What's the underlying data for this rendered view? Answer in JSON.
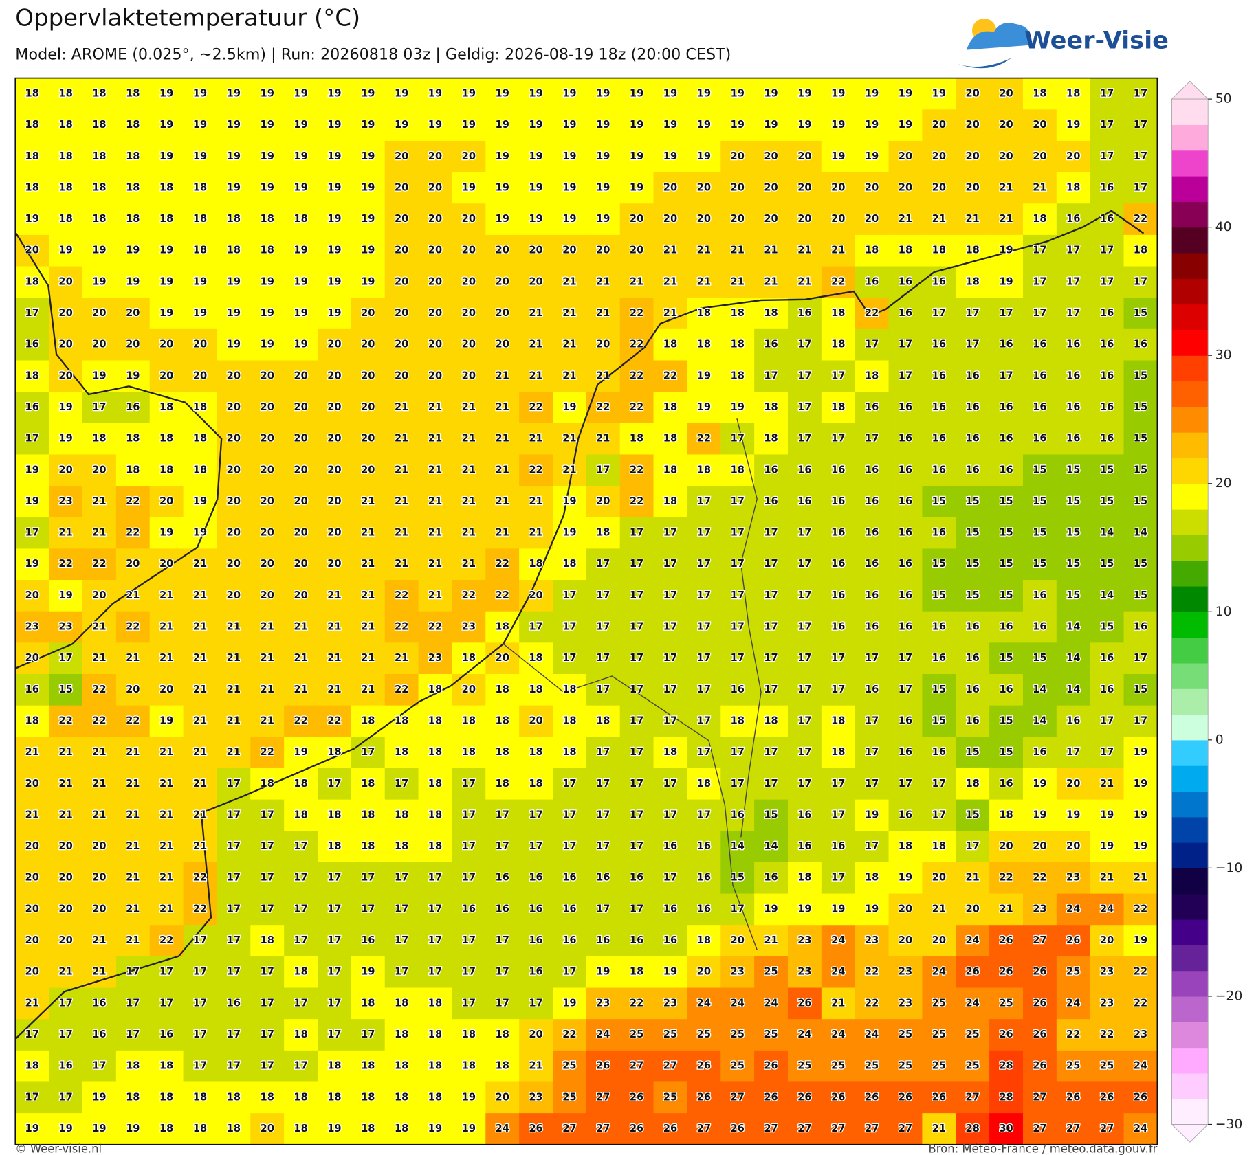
{
  "header": {
    "title": "Oppervlaktetemperatuur (°C)",
    "subtitle": "Model: AROME (0.025°, ~2.5km)  |  Run: 20260818 03z  |  Geldig: 2026-08-19 18z (20:00 CEST)"
  },
  "logo": {
    "text": "Weer-Visie"
  },
  "grid": {
    "rows": [
      [
        18,
        18,
        18,
        18,
        19,
        19,
        19,
        19,
        19,
        19,
        19,
        19,
        19,
        19,
        19,
        19,
        19,
        19,
        19,
        19,
        19,
        19,
        19,
        19,
        19,
        19,
        19,
        19,
        20,
        20,
        18,
        18,
        17,
        17
      ],
      [
        18,
        18,
        18,
        18,
        19,
        19,
        19,
        19,
        19,
        19,
        19,
        19,
        19,
        19,
        19,
        19,
        19,
        19,
        19,
        19,
        19,
        19,
        19,
        19,
        19,
        19,
        19,
        20,
        20,
        20,
        20,
        19,
        17,
        17
      ],
      [
        18,
        18,
        18,
        18,
        19,
        19,
        19,
        19,
        19,
        19,
        19,
        20,
        20,
        20,
        19,
        19,
        19,
        19,
        19,
        19,
        19,
        20,
        20,
        20,
        19,
        19,
        20,
        20,
        20,
        20,
        20,
        20,
        17,
        17
      ],
      [
        18,
        18,
        18,
        18,
        18,
        18,
        19,
        19,
        19,
        19,
        19,
        20,
        20,
        19,
        19,
        19,
        19,
        19,
        19,
        20,
        20,
        20,
        20,
        20,
        20,
        20,
        20,
        20,
        20,
        21,
        21,
        18,
        16,
        17
      ],
      [
        19,
        18,
        18,
        18,
        18,
        18,
        18,
        18,
        18,
        19,
        19,
        20,
        20,
        20,
        19,
        19,
        19,
        19,
        20,
        20,
        20,
        20,
        20,
        20,
        20,
        20,
        21,
        21,
        21,
        21,
        18,
        16,
        16,
        22
      ],
      [
        20,
        19,
        19,
        19,
        19,
        18,
        18,
        18,
        19,
        19,
        19,
        20,
        20,
        20,
        20,
        20,
        20,
        20,
        20,
        21,
        21,
        21,
        21,
        21,
        21,
        18,
        18,
        18,
        18,
        19,
        17,
        17,
        17,
        18
      ],
      [
        18,
        20,
        19,
        19,
        19,
        19,
        19,
        19,
        19,
        19,
        19,
        20,
        20,
        20,
        20,
        20,
        21,
        21,
        21,
        21,
        21,
        21,
        21,
        21,
        22,
        16,
        16,
        16,
        18,
        19,
        17,
        17,
        17,
        17
      ],
      [
        17,
        20,
        20,
        20,
        19,
        19,
        19,
        19,
        19,
        19,
        20,
        20,
        20,
        20,
        20,
        21,
        21,
        21,
        22,
        21,
        18,
        18,
        18,
        16,
        18,
        22,
        16,
        17,
        17,
        17,
        17,
        17,
        16,
        15
      ],
      [
        16,
        20,
        20,
        20,
        20,
        20,
        19,
        19,
        19,
        20,
        20,
        20,
        20,
        20,
        20,
        21,
        21,
        20,
        22,
        18,
        18,
        18,
        16,
        17,
        18,
        17,
        17,
        16,
        17,
        16,
        16,
        16,
        16,
        16
      ],
      [
        18,
        20,
        19,
        19,
        20,
        20,
        20,
        20,
        20,
        20,
        20,
        20,
        20,
        20,
        21,
        21,
        21,
        21,
        22,
        22,
        19,
        18,
        17,
        17,
        17,
        18,
        17,
        16,
        16,
        17,
        16,
        16,
        16,
        15
      ],
      [
        16,
        19,
        17,
        16,
        18,
        18,
        20,
        20,
        20,
        20,
        20,
        21,
        21,
        21,
        21,
        22,
        19,
        22,
        22,
        18,
        19,
        19,
        18,
        17,
        18,
        16,
        16,
        16,
        16,
        16,
        16,
        16,
        16,
        15
      ],
      [
        17,
        19,
        18,
        18,
        18,
        18,
        20,
        20,
        20,
        20,
        20,
        21,
        21,
        21,
        21,
        21,
        21,
        21,
        18,
        18,
        22,
        17,
        18,
        17,
        17,
        17,
        16,
        16,
        16,
        16,
        16,
        16,
        16,
        15
      ],
      [
        19,
        20,
        20,
        18,
        18,
        18,
        20,
        20,
        20,
        20,
        20,
        21,
        21,
        21,
        21,
        22,
        21,
        17,
        22,
        18,
        18,
        18,
        16,
        16,
        16,
        16,
        16,
        16,
        16,
        16,
        15,
        15,
        15,
        15
      ],
      [
        19,
        23,
        21,
        22,
        20,
        19,
        20,
        20,
        20,
        20,
        21,
        21,
        21,
        21,
        21,
        21,
        19,
        20,
        22,
        18,
        17,
        17,
        16,
        16,
        16,
        16,
        16,
        15,
        15,
        15,
        15,
        15,
        15,
        15
      ],
      [
        17,
        21,
        21,
        22,
        19,
        19,
        20,
        20,
        20,
        20,
        21,
        21,
        21,
        21,
        21,
        21,
        19,
        18,
        17,
        17,
        17,
        17,
        17,
        17,
        16,
        16,
        16,
        16,
        15,
        15,
        15,
        15,
        14,
        14
      ],
      [
        19,
        22,
        22,
        20,
        20,
        21,
        20,
        20,
        20,
        20,
        21,
        21,
        21,
        21,
        22,
        18,
        18,
        17,
        17,
        17,
        17,
        17,
        17,
        17,
        16,
        16,
        16,
        15,
        15,
        15,
        15,
        15,
        15,
        15
      ],
      [
        20,
        19,
        20,
        21,
        21,
        21,
        20,
        20,
        20,
        21,
        21,
        22,
        21,
        22,
        22,
        20,
        17,
        17,
        17,
        17,
        17,
        17,
        17,
        17,
        16,
        16,
        16,
        15,
        15,
        15,
        16,
        15,
        14,
        15
      ],
      [
        23,
        23,
        21,
        22,
        21,
        21,
        21,
        21,
        21,
        21,
        21,
        22,
        22,
        23,
        18,
        17,
        17,
        17,
        17,
        17,
        17,
        17,
        17,
        17,
        16,
        16,
        16,
        16,
        16,
        16,
        16,
        14,
        15,
        16
      ],
      [
        20,
        17,
        21,
        21,
        21,
        21,
        21,
        21,
        21,
        21,
        21,
        21,
        23,
        18,
        20,
        18,
        17,
        17,
        17,
        17,
        17,
        17,
        17,
        17,
        17,
        17,
        17,
        16,
        16,
        15,
        15,
        14,
        16,
        17
      ],
      [
        16,
        15,
        22,
        20,
        20,
        21,
        21,
        21,
        21,
        21,
        21,
        22,
        18,
        20,
        18,
        18,
        18,
        17,
        17,
        17,
        17,
        16,
        17,
        17,
        17,
        16,
        17,
        15,
        16,
        16,
        14,
        14,
        16,
        15
      ],
      [
        18,
        22,
        22,
        22,
        19,
        21,
        21,
        21,
        22,
        22,
        18,
        18,
        18,
        18,
        18,
        20,
        18,
        18,
        17,
        17,
        17,
        18,
        18,
        17,
        18,
        17,
        16,
        15,
        16,
        15,
        14,
        16,
        17,
        17
      ],
      [
        21,
        21,
        21,
        21,
        21,
        21,
        21,
        22,
        19,
        18,
        17,
        18,
        18,
        18,
        18,
        18,
        18,
        17,
        17,
        18,
        17,
        17,
        17,
        17,
        18,
        17,
        16,
        16,
        15,
        15,
        16,
        17,
        17,
        19
      ],
      [
        20,
        21,
        21,
        21,
        21,
        21,
        17,
        18,
        18,
        17,
        18,
        17,
        18,
        17,
        18,
        18,
        17,
        17,
        17,
        17,
        18,
        17,
        17,
        17,
        17,
        17,
        17,
        17,
        18,
        16,
        19,
        20,
        21,
        19
      ],
      [
        21,
        21,
        21,
        21,
        21,
        21,
        17,
        17,
        18,
        18,
        18,
        18,
        18,
        17,
        17,
        17,
        17,
        17,
        17,
        17,
        17,
        16,
        15,
        16,
        17,
        19,
        16,
        17,
        15,
        18,
        19,
        19,
        19,
        19
      ],
      [
        20,
        20,
        20,
        21,
        21,
        21,
        17,
        17,
        17,
        18,
        18,
        18,
        18,
        17,
        17,
        17,
        17,
        17,
        17,
        16,
        16,
        14,
        14,
        16,
        16,
        17,
        18,
        18,
        17,
        20,
        20,
        20,
        19,
        19
      ],
      [
        20,
        20,
        20,
        21,
        21,
        22,
        17,
        17,
        17,
        17,
        17,
        17,
        17,
        17,
        16,
        16,
        16,
        16,
        16,
        17,
        16,
        15,
        16,
        18,
        17,
        18,
        19,
        20,
        21,
        22,
        22,
        23,
        21,
        21
      ],
      [
        20,
        20,
        20,
        21,
        21,
        22,
        17,
        17,
        17,
        17,
        17,
        17,
        17,
        16,
        16,
        16,
        16,
        17,
        17,
        16,
        16,
        17,
        19,
        19,
        19,
        19,
        20,
        21,
        20,
        21,
        23,
        24,
        24,
        22
      ],
      [
        20,
        20,
        21,
        21,
        22,
        17,
        17,
        18,
        17,
        17,
        16,
        17,
        17,
        17,
        17,
        16,
        16,
        16,
        16,
        16,
        18,
        20,
        21,
        23,
        24,
        23,
        20,
        20,
        24,
        26,
        27,
        26,
        20,
        19
      ],
      [
        20,
        21,
        21,
        17,
        17,
        17,
        17,
        17,
        18,
        17,
        19,
        17,
        17,
        17,
        17,
        16,
        17,
        19,
        18,
        19,
        20,
        23,
        25,
        23,
        24,
        22,
        23,
        24,
        26,
        26,
        26,
        25,
        23,
        22
      ],
      [
        21,
        17,
        16,
        17,
        17,
        17,
        16,
        17,
        17,
        17,
        18,
        18,
        18,
        17,
        17,
        17,
        19,
        23,
        22,
        23,
        24,
        24,
        24,
        26,
        21,
        22,
        23,
        25,
        24,
        25,
        26,
        24,
        23,
        22
      ],
      [
        17,
        17,
        16,
        17,
        16,
        17,
        17,
        17,
        18,
        17,
        17,
        18,
        18,
        18,
        18,
        20,
        22,
        24,
        25,
        25,
        25,
        25,
        25,
        24,
        24,
        24,
        25,
        25,
        25,
        26,
        26,
        22,
        22,
        23
      ],
      [
        18,
        16,
        17,
        18,
        18,
        17,
        17,
        17,
        17,
        18,
        18,
        18,
        18,
        18,
        18,
        21,
        25,
        26,
        27,
        27,
        26,
        25,
        26,
        25,
        25,
        25,
        25,
        25,
        25,
        28,
        26,
        25,
        25,
        24
      ],
      [
        17,
        17,
        19,
        18,
        18,
        18,
        18,
        18,
        18,
        18,
        18,
        18,
        18,
        19,
        20,
        23,
        25,
        27,
        26,
        25,
        26,
        27,
        26,
        26,
        26,
        26,
        26,
        26,
        27,
        28,
        27,
        26,
        26,
        26
      ],
      [
        19,
        19,
        19,
        19,
        18,
        18,
        18,
        20,
        18,
        19,
        18,
        18,
        19,
        19,
        24,
        26,
        27,
        27,
        26,
        26,
        27,
        26,
        27,
        27,
        27,
        27,
        27,
        21,
        28,
        30,
        27,
        27,
        27,
        24
      ]
    ]
  },
  "colorbar": {
    "ylim": [
      -30,
      50
    ],
    "yticks": [
      {
        "value": -30,
        "label": "−30"
      },
      {
        "value": -20,
        "label": "−20"
      },
      {
        "value": -10,
        "label": "−10"
      },
      0,
      10,
      20,
      30,
      40,
      50
    ],
    "colors": [
      "#ffeeff",
      "#ffccff",
      "#ffaaff",
      "#dd88dd",
      "#bb66cc",
      "#9944bb",
      "#662299",
      "#440088",
      "#220055",
      "#110044",
      "#002288",
      "#0044aa",
      "#0077cc",
      "#00aaee",
      "#33ccff",
      "#ccffdd",
      "#aaeeaa",
      "#77dd77",
      "#44cc44",
      "#00bb00",
      "#008800",
      "#44aa00",
      "#99cc00",
      "#ccdd00",
      "#ffff00",
      "#ffd700",
      "#ffbb00",
      "#ff8c00",
      "#ff6000",
      "#ff4000",
      "#ff0000",
      "#dd0000",
      "#b00000",
      "#880000",
      "#550022",
      "#880055",
      "#bb0099",
      "#ee44cc",
      "#ffaadd",
      "#ffddee"
    ]
  },
  "footer": {
    "left": "© Weer-visie.nl",
    "right": "Bron: Météo-France / meteo.data.gouv.fr"
  }
}
